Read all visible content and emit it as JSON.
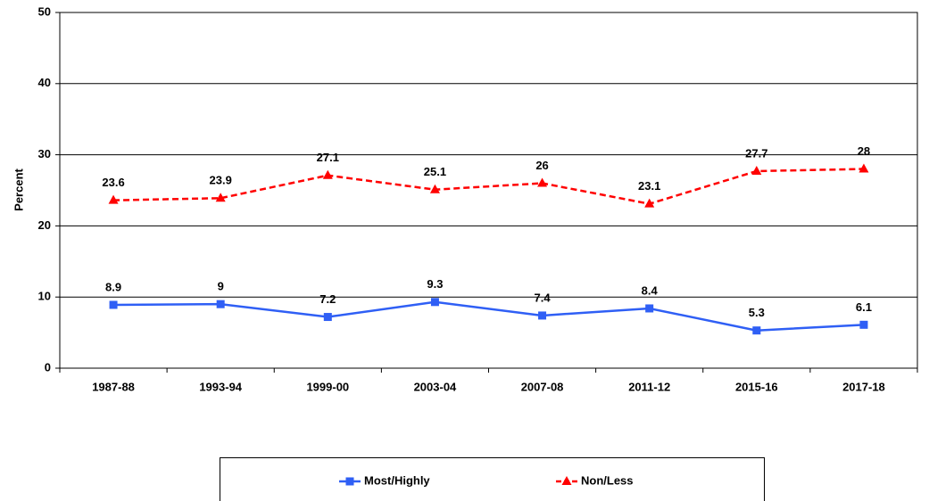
{
  "chart_data": {
    "type": "line",
    "ylabel": "Percent",
    "categories": [
      "1987-88",
      "1993-94",
      "1999-00",
      "2003-04",
      "2007-08",
      "2011-12",
      "2015-16",
      "2017-18"
    ],
    "series": [
      {
        "name": "Most/Highly",
        "color": "#2f5ff5",
        "marker": "square",
        "dash": false,
        "values": [
          8.9,
          9,
          7.2,
          9.3,
          7.4,
          8.4,
          5.3,
          6.1
        ]
      },
      {
        "name": "Non/Less",
        "color": "#ff0000",
        "marker": "triangle",
        "dash": true,
        "values": [
          23.6,
          23.9,
          27.1,
          25.1,
          26,
          23.1,
          27.7,
          28
        ]
      }
    ],
    "ylim": [
      0,
      50
    ],
    "yticks": [
      0,
      10,
      20,
      30,
      40,
      50
    ],
    "grid": true,
    "legend": "bottom"
  }
}
